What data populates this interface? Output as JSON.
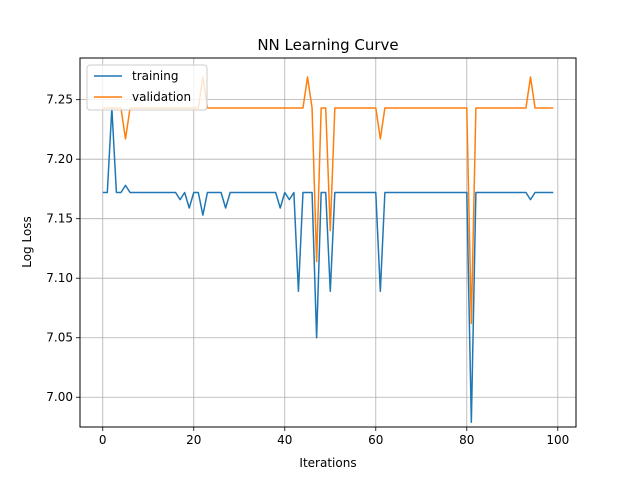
{
  "chart_data": {
    "type": "line",
    "title": "NN Learning Curve",
    "xlabel": "Iterations",
    "ylabel": "Log Loss",
    "xlim": [
      -5,
      104
    ],
    "ylim": [
      6.975,
      7.285
    ],
    "xticks": [
      0,
      20,
      40,
      60,
      80,
      100
    ],
    "yticks": [
      7.0,
      7.05,
      7.1,
      7.15,
      7.2,
      7.25
    ],
    "grid": true,
    "legend_position": "top-left",
    "series": [
      {
        "name": "training",
        "color": "#1f77b4",
        "x": [
          0,
          1,
          2,
          3,
          4,
          5,
          6,
          7,
          8,
          9,
          10,
          11,
          12,
          13,
          14,
          15,
          16,
          17,
          18,
          19,
          20,
          21,
          22,
          23,
          24,
          25,
          26,
          27,
          28,
          29,
          30,
          31,
          32,
          33,
          34,
          35,
          36,
          37,
          38,
          39,
          40,
          41,
          42,
          43,
          44,
          45,
          46,
          47,
          48,
          49,
          50,
          51,
          52,
          53,
          54,
          55,
          56,
          57,
          58,
          59,
          60,
          61,
          62,
          63,
          64,
          65,
          66,
          67,
          68,
          69,
          70,
          71,
          72,
          73,
          74,
          75,
          76,
          77,
          78,
          79,
          80,
          81,
          82,
          83,
          84,
          85,
          86,
          87,
          88,
          89,
          90,
          91,
          92,
          93,
          94,
          95,
          96,
          97,
          98,
          99
        ],
        "values": [
          7.172,
          7.172,
          7.243,
          7.172,
          7.172,
          7.178,
          7.172,
          7.172,
          7.172,
          7.172,
          7.172,
          7.172,
          7.172,
          7.172,
          7.172,
          7.172,
          7.172,
          7.166,
          7.172,
          7.159,
          7.172,
          7.172,
          7.153,
          7.172,
          7.172,
          7.172,
          7.172,
          7.159,
          7.172,
          7.172,
          7.172,
          7.172,
          7.172,
          7.172,
          7.172,
          7.172,
          7.172,
          7.172,
          7.172,
          7.159,
          7.172,
          7.166,
          7.172,
          7.089,
          7.172,
          7.172,
          7.172,
          7.05,
          7.172,
          7.172,
          7.089,
          7.172,
          7.172,
          7.172,
          7.172,
          7.172,
          7.172,
          7.172,
          7.172,
          7.172,
          7.172,
          7.089,
          7.172,
          7.172,
          7.172,
          7.172,
          7.172,
          7.172,
          7.172,
          7.172,
          7.172,
          7.172,
          7.172,
          7.172,
          7.172,
          7.172,
          7.172,
          7.172,
          7.172,
          7.172,
          7.172,
          6.979,
          7.172,
          7.172,
          7.172,
          7.172,
          7.172,
          7.172,
          7.172,
          7.172,
          7.172,
          7.172,
          7.172,
          7.172,
          7.166,
          7.172,
          7.172,
          7.172,
          7.172,
          7.172
        ]
      },
      {
        "name": "validation",
        "color": "#ff7f0e",
        "x": [
          0,
          1,
          2,
          3,
          4,
          5,
          6,
          7,
          8,
          9,
          10,
          11,
          12,
          13,
          14,
          15,
          16,
          17,
          18,
          19,
          20,
          21,
          22,
          23,
          24,
          25,
          26,
          27,
          28,
          29,
          30,
          31,
          32,
          33,
          34,
          35,
          36,
          37,
          38,
          39,
          40,
          41,
          42,
          43,
          44,
          45,
          46,
          47,
          48,
          49,
          50,
          51,
          52,
          53,
          54,
          55,
          56,
          57,
          58,
          59,
          60,
          61,
          62,
          63,
          64,
          65,
          66,
          67,
          68,
          69,
          70,
          71,
          72,
          73,
          74,
          75,
          76,
          77,
          78,
          79,
          80,
          81,
          82,
          83,
          84,
          85,
          86,
          87,
          88,
          89,
          90,
          91,
          92,
          93,
          94,
          95,
          96,
          97,
          98,
          99
        ],
        "values": [
          7.243,
          7.243,
          7.243,
          7.243,
          7.243,
          7.217,
          7.243,
          7.243,
          7.243,
          7.243,
          7.243,
          7.243,
          7.243,
          7.243,
          7.243,
          7.243,
          7.243,
          7.243,
          7.243,
          7.243,
          7.243,
          7.243,
          7.269,
          7.243,
          7.243,
          7.243,
          7.243,
          7.243,
          7.243,
          7.243,
          7.243,
          7.243,
          7.243,
          7.243,
          7.243,
          7.243,
          7.243,
          7.243,
          7.243,
          7.243,
          7.243,
          7.243,
          7.243,
          7.243,
          7.243,
          7.269,
          7.243,
          7.114,
          7.243,
          7.243,
          7.14,
          7.243,
          7.243,
          7.243,
          7.243,
          7.243,
          7.243,
          7.243,
          7.243,
          7.243,
          7.243,
          7.217,
          7.243,
          7.243,
          7.243,
          7.243,
          7.243,
          7.243,
          7.243,
          7.243,
          7.243,
          7.243,
          7.243,
          7.243,
          7.243,
          7.243,
          7.243,
          7.243,
          7.243,
          7.243,
          7.243,
          7.062,
          7.243,
          7.243,
          7.243,
          7.243,
          7.243,
          7.243,
          7.243,
          7.243,
          7.243,
          7.243,
          7.243,
          7.243,
          7.269,
          7.243,
          7.243,
          7.243,
          7.243,
          7.243
        ]
      }
    ]
  }
}
